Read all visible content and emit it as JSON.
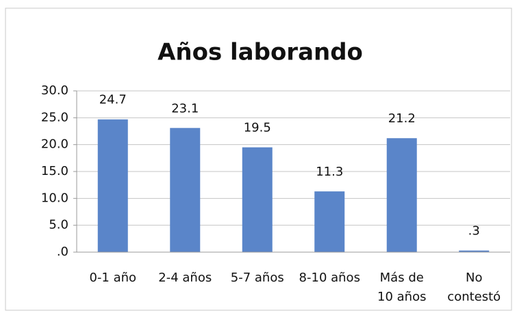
{
  "chart_data": {
    "type": "bar",
    "title": "Años laborando",
    "categories": [
      "0-1 año",
      "2-4 años",
      "5-7 años",
      "8-10 años",
      [
        "Más de",
        "10 años"
      ],
      [
        "No",
        "contestó"
      ]
    ],
    "values": [
      24.7,
      23.1,
      19.5,
      11.3,
      21.2,
      0.3
    ],
    "value_labels": [
      "24.7",
      "23.1",
      "19.5",
      "11.3",
      "21.2",
      ".3"
    ],
    "color": "#5a85c9",
    "ylim": [
      0,
      30
    ],
    "yticks": [
      {
        "value": 0,
        "label": ".0"
      },
      {
        "value": 5,
        "label": "5.0"
      },
      {
        "value": 10,
        "label": "10.0"
      },
      {
        "value": 15,
        "label": "15.0"
      },
      {
        "value": 20,
        "label": "20.0"
      },
      {
        "value": 25,
        "label": "25.0"
      },
      {
        "value": 30,
        "label": "30.0"
      }
    ],
    "grid": true
  }
}
